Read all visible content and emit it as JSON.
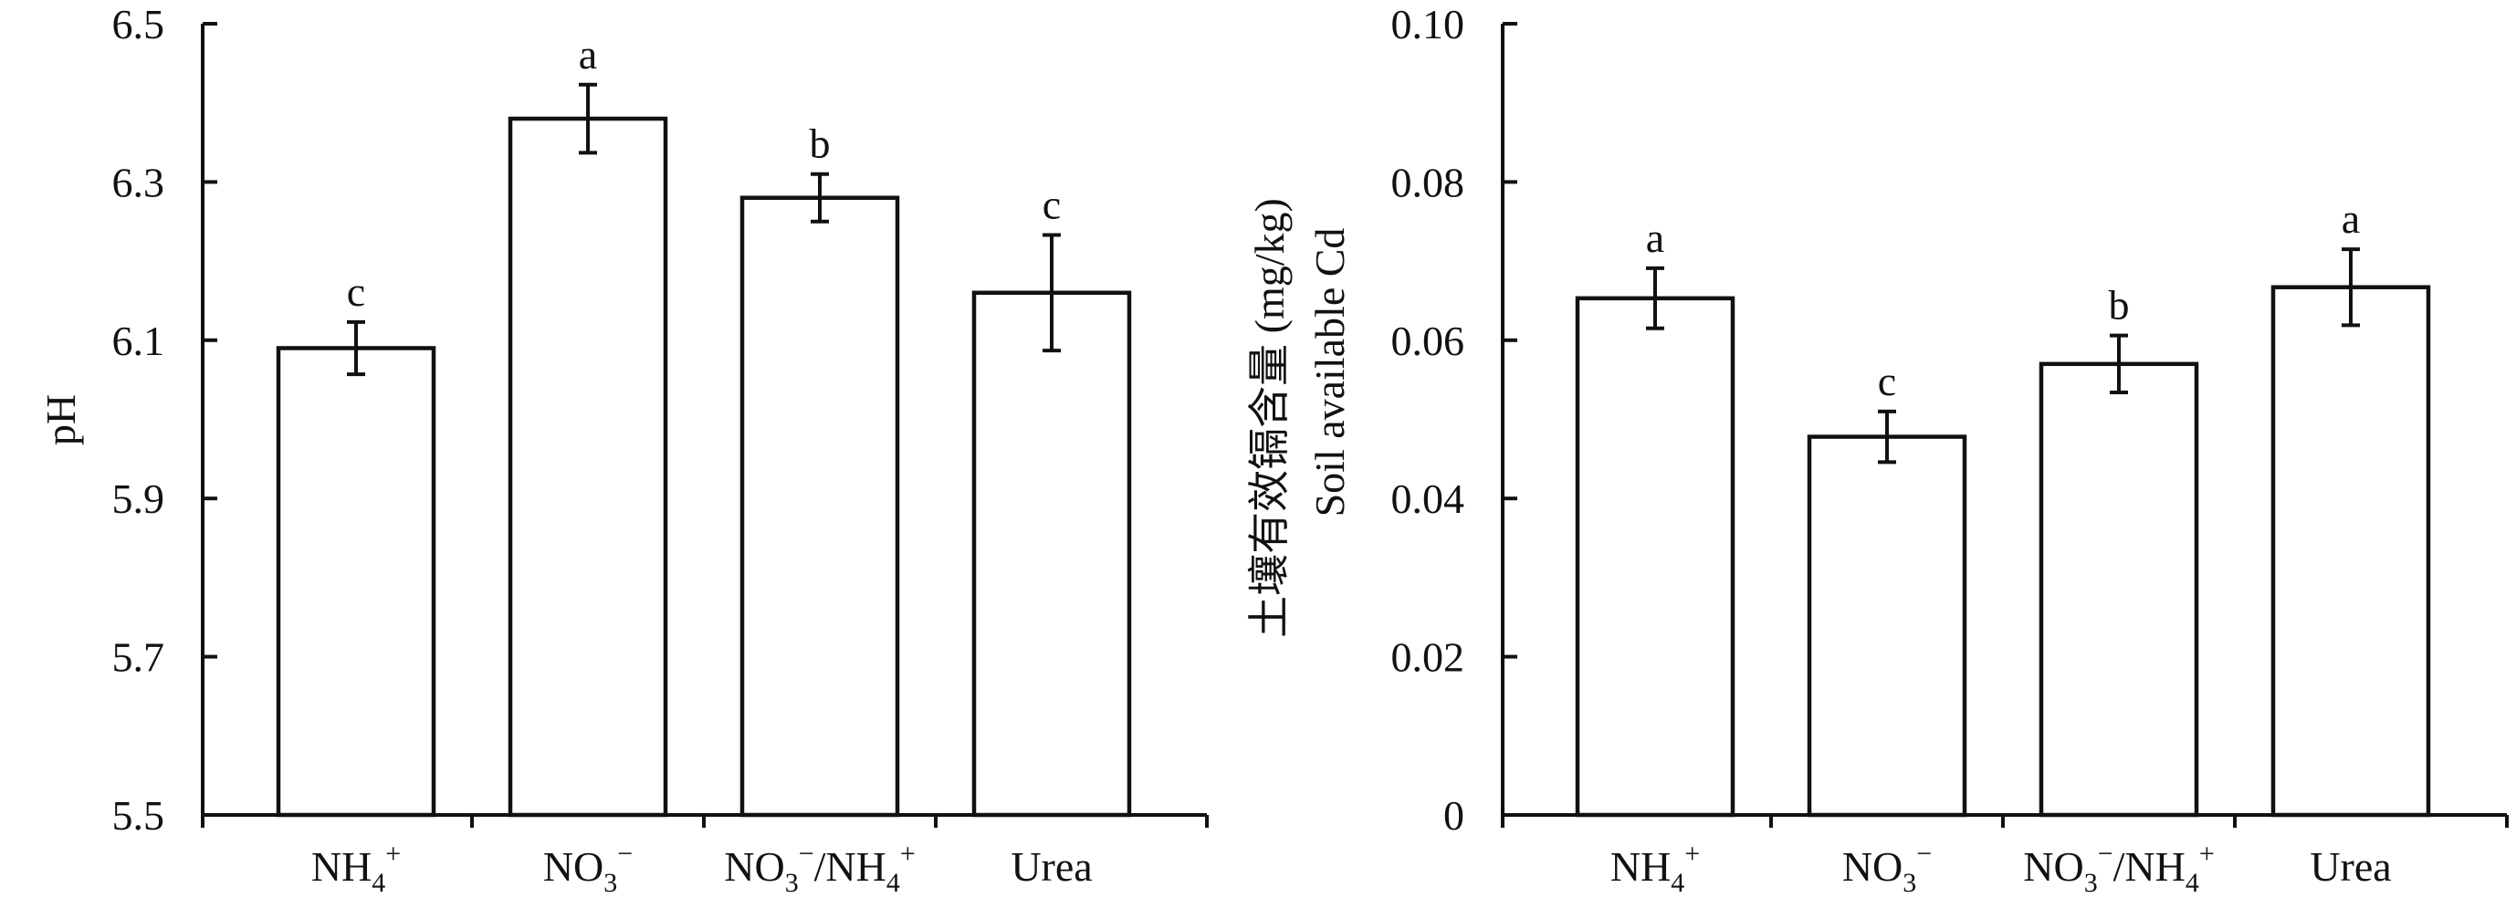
{
  "chart_data": [
    {
      "type": "bar",
      "ylabel": "pH",
      "ylim": [
        5.5,
        6.5
      ],
      "yticks": [
        "5.5",
        "5.7",
        "5.9",
        "6.1",
        "6.3",
        "6.5"
      ],
      "categories": [
        {
          "base": "NH",
          "sub": "4",
          "sup": "+",
          "mid": "",
          "base2": "",
          "sub2": "",
          "sup2": ""
        },
        {
          "base": "NO",
          "sub": "3",
          "sup": "−",
          "mid": "",
          "base2": "",
          "sub2": "",
          "sup2": ""
        },
        {
          "base": "NO",
          "sub": "3",
          "sup": "−",
          "mid": "/",
          "base2": "NH",
          "sub2": "4",
          "sup2": "+"
        },
        {
          "base": "Urea",
          "sub": "",
          "sup": "",
          "mid": "",
          "base2": "",
          "sub2": "",
          "sup2": ""
        }
      ],
      "values": [
        6.09,
        6.38,
        6.28,
        6.16
      ],
      "errors": [
        0.033,
        0.043,
        0.03,
        0.073
      ],
      "significance": [
        "c",
        "a",
        "b",
        "c"
      ]
    },
    {
      "type": "bar",
      "ylabel_zh": "土壤有效镉含量 (mg/kg)",
      "ylabel_en": "Soil available Cd",
      "ylim": [
        0,
        0.1
      ],
      "yticks": [
        "0",
        "0.02",
        "0.04",
        "0.06",
        "0.08",
        "0.10"
      ],
      "categories": [
        {
          "base": "NH",
          "sub": "4",
          "sup": "+",
          "mid": "",
          "base2": "",
          "sub2": "",
          "sup2": ""
        },
        {
          "base": "NO",
          "sub": "3",
          "sup": "−",
          "mid": "",
          "base2": "",
          "sub2": "",
          "sup2": ""
        },
        {
          "base": "NO",
          "sub": "3",
          "sup": "−",
          "mid": "/",
          "base2": "NH",
          "sub2": "4",
          "sup2": "+"
        },
        {
          "base": "Urea",
          "sub": "",
          "sup": "",
          "mid": "",
          "base2": "",
          "sub2": "",
          "sup2": ""
        }
      ],
      "values": [
        0.0653,
        0.0478,
        0.057,
        0.0667
      ],
      "errors": [
        0.0038,
        0.0032,
        0.0036,
        0.0048
      ],
      "significance": [
        "a",
        "c",
        "b",
        "a"
      ]
    }
  ]
}
